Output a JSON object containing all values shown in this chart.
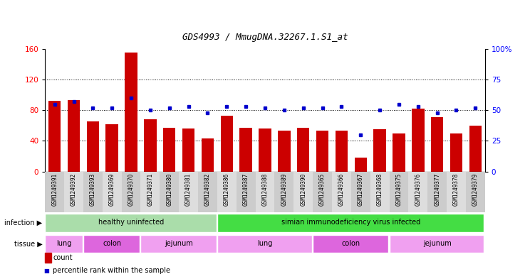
{
  "title": "GDS4993 / MmugDNA.32267.1.S1_at",
  "samples": [
    "GSM1249391",
    "GSM1249392",
    "GSM1249393",
    "GSM1249369",
    "GSM1249370",
    "GSM1249371",
    "GSM1249380",
    "GSM1249381",
    "GSM1249382",
    "GSM1249386",
    "GSM1249387",
    "GSM1249388",
    "GSM1249389",
    "GSM1249390",
    "GSM1249365",
    "GSM1249366",
    "GSM1249367",
    "GSM1249368",
    "GSM1249375",
    "GSM1249376",
    "GSM1249377",
    "GSM1249378",
    "GSM1249379"
  ],
  "counts": [
    92,
    93,
    65,
    62,
    155,
    68,
    57,
    56,
    43,
    73,
    57,
    56,
    53,
    57,
    53,
    53,
    18,
    55,
    50,
    82,
    71,
    50,
    60
  ],
  "percentiles": [
    55,
    57,
    52,
    52,
    60,
    50,
    52,
    53,
    48,
    53,
    53,
    52,
    50,
    52,
    52,
    53,
    30,
    50,
    55,
    53,
    48,
    50,
    52
  ],
  "bar_color": "#cc0000",
  "dot_color": "#0000cc",
  "ylim_left": [
    0,
    160
  ],
  "ylim_right": [
    0,
    100
  ],
  "yticks_left": [
    0,
    40,
    80,
    120,
    160
  ],
  "ytick_labels_left": [
    "0",
    "40",
    "80",
    "120",
    "160"
  ],
  "yticks_right": [
    0,
    25,
    50,
    75,
    100
  ],
  "ytick_labels_right": [
    "0",
    "25",
    "50",
    "75",
    "100%"
  ],
  "grid_values": [
    40,
    80,
    120
  ],
  "infection_groups": [
    {
      "label": "healthy uninfected",
      "start": 0,
      "end": 9,
      "color": "#aaddaa"
    },
    {
      "label": "simian immunodeficiency virus infected",
      "start": 9,
      "end": 23,
      "color": "#44dd44"
    }
  ],
  "tissue_groups": [
    {
      "label": "lung",
      "start": 0,
      "end": 2,
      "color": "#f0a0f0"
    },
    {
      "label": "colon",
      "start": 2,
      "end": 5,
      "color": "#dd66dd"
    },
    {
      "label": "jejunum",
      "start": 5,
      "end": 9,
      "color": "#f0a0f0"
    },
    {
      "label": "lung",
      "start": 9,
      "end": 14,
      "color": "#f0a0f0"
    },
    {
      "label": "colon",
      "start": 14,
      "end": 18,
      "color": "#dd66dd"
    },
    {
      "label": "jejunum",
      "start": 18,
      "end": 23,
      "color": "#f0a0f0"
    }
  ],
  "infection_label": "infection",
  "tissue_label": "tissue",
  "legend_count": "count",
  "legend_percentile": "percentile rank within the sample",
  "xtick_bg_even": "#cccccc",
  "xtick_bg_odd": "#dddddd"
}
